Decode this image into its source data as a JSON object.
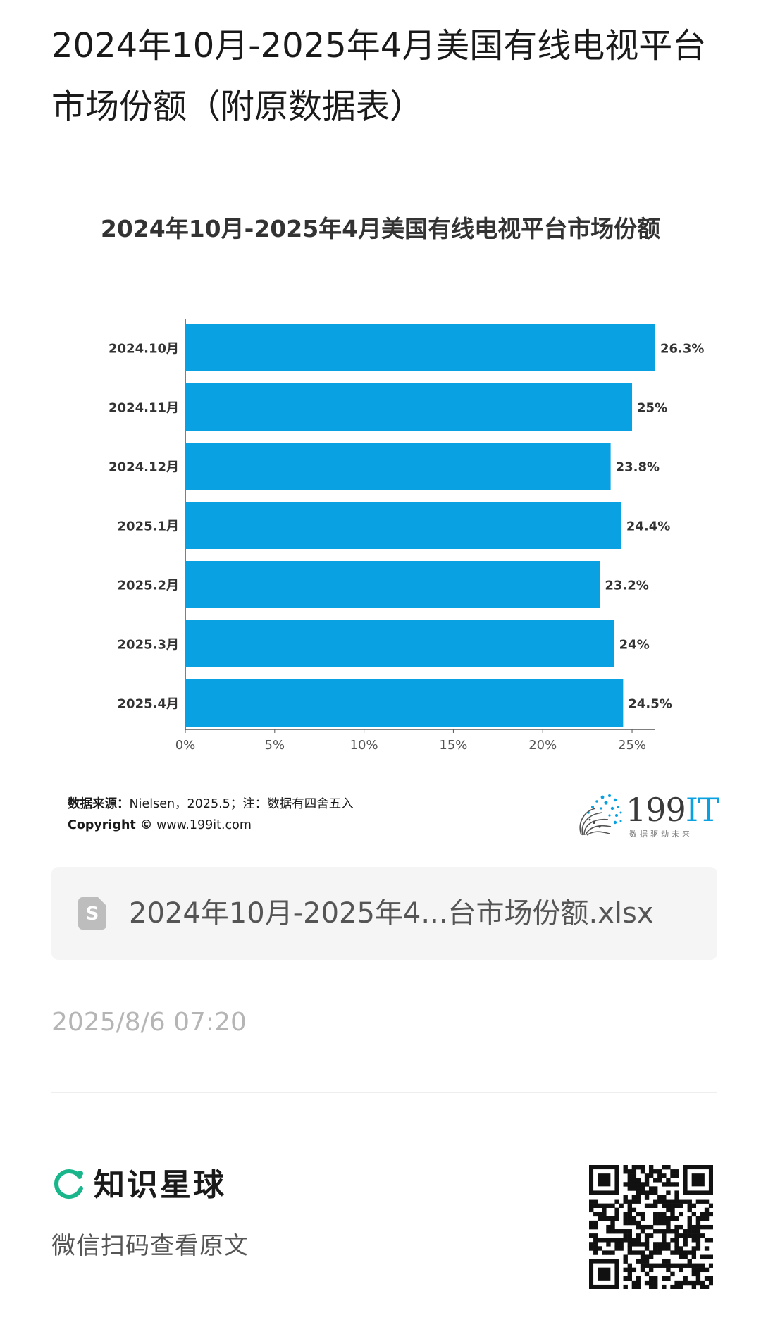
{
  "page": {
    "title": "2024年10月-2025年4月美国有线电视平台市场份额（附原数据表）",
    "file_name": "2024年10月-2025年4...台市场份额.xlsx",
    "file_icon_letter": "S",
    "timestamp": "2025/8/6 07:20",
    "brand_name": "知识星球",
    "brand_sub": "微信扫码查看原文",
    "accent_color": "#0aa1e2",
    "brand_color": "#19b68c"
  },
  "chart_data": {
    "type": "bar",
    "orientation": "horizontal",
    "title": "2024年10月-2025年4月美国有线电视平台市场份额",
    "categories": [
      "2024.10月",
      "2024.11月",
      "2024.12月",
      "2025.1月",
      "2025.2月",
      "2025.3月",
      "2025.4月"
    ],
    "values": [
      26.3,
      25,
      23.8,
      24.4,
      23.2,
      24,
      24.5
    ],
    "data_labels": [
      "26.3%",
      "25%",
      "23.8%",
      "24.4%",
      "23.2%",
      "24%",
      "24.5%"
    ],
    "x_ticks": [
      "0%",
      "5%",
      "10%",
      "15%",
      "20%",
      "25%"
    ],
    "x_tick_values": [
      0,
      5,
      10,
      15,
      20,
      25
    ],
    "xlim": [
      0,
      26.3
    ],
    "bar_color": "#0aa1e2",
    "grid": false
  },
  "source": {
    "label": "数据来源：",
    "text": "Nielsen，2025.5；注：数据有四舍五入",
    "copyright_label": "Copyright ©",
    "copyright_url": "www.199it.com"
  },
  "logo": {
    "main": "199",
    "accent": "IT",
    "tagline": "数据驱动未来"
  }
}
